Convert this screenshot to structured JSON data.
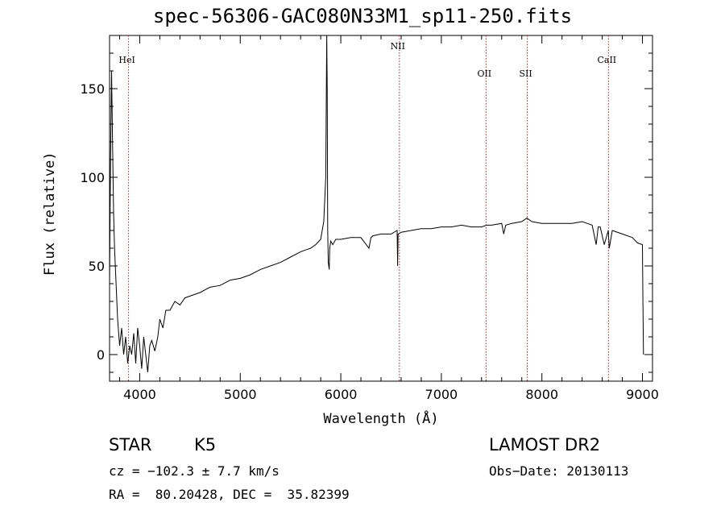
{
  "header": {
    "title": "spec-56306-GAC080N33M1_sp11-250.fits"
  },
  "info": {
    "obj_class": "STAR",
    "subclass": "K5",
    "survey": "LAMOST DR2",
    "cz": "cz = −102.3 ± 7.7 km/s",
    "obs_date": "Obs−Date: 20130113",
    "radec": "RA =  80.20428, DEC =  35.82399"
  },
  "colors": {
    "spectrum": "#000000",
    "lines": "#b22222",
    "axes": "#000000"
  },
  "chart_data": {
    "type": "line",
    "title": "spec-56306-GAC080N33M1_sp11-250.fits",
    "xlabel": "Wavelength (Å)",
    "ylabel": "Flux (relative)",
    "xlim": [
      3700,
      9100
    ],
    "ylim": [
      -15,
      180
    ],
    "xticks": [
      4000,
      5000,
      6000,
      7000,
      8000,
      9000
    ],
    "yticks": [
      0,
      50,
      100,
      150
    ],
    "grid": false,
    "series": [
      {
        "x": [
          3700,
          3710,
          3720,
          3730,
          3740,
          3750,
          3765,
          3780,
          3800,
          3820,
          3840,
          3860,
          3880,
          3900,
          3920,
          3940,
          3960,
          3980,
          4000,
          4020,
          4040,
          4060,
          4080,
          4100,
          4120,
          4150,
          4180,
          4200,
          4230,
          4260,
          4300,
          4350,
          4400,
          4450,
          4500,
          4600,
          4700,
          4800,
          4900,
          5000,
          5100,
          5200,
          5300,
          5400,
          5500,
          5600,
          5700,
          5750,
          5800,
          5830,
          5850,
          5860,
          5865,
          5870,
          5875,
          5880,
          5885,
          5890,
          5900,
          5920,
          5950,
          6000,
          6100,
          6200,
          6280,
          6300,
          6320,
          6400,
          6500,
          6560,
          6565,
          6570,
          6600,
          6700,
          6800,
          6900,
          7000,
          7100,
          7200,
          7300,
          7400,
          7450,
          7500,
          7600,
          7620,
          7640,
          7700,
          7800,
          7850,
          7900,
          8000,
          8100,
          8200,
          8300,
          8400,
          8450,
          8500,
          8540,
          8560,
          8580,
          8620,
          8660,
          8670,
          8700,
          8800,
          8900,
          8950,
          9000,
          9005,
          9010
        ],
        "y": [
          40,
          110,
          160,
          120,
          80,
          60,
          40,
          20,
          5,
          15,
          0,
          10,
          -5,
          5,
          0,
          12,
          -5,
          15,
          5,
          -8,
          10,
          0,
          -10,
          5,
          8,
          2,
          10,
          20,
          15,
          25,
          25,
          30,
          28,
          32,
          33,
          35,
          38,
          39,
          42,
          43,
          45,
          48,
          50,
          52,
          55,
          58,
          60,
          62,
          65,
          75,
          100,
          180,
          150,
          70,
          52,
          50,
          48,
          60,
          64,
          62,
          65,
          65,
          66,
          66,
          60,
          66,
          67,
          68,
          68,
          70,
          50,
          68,
          69,
          70,
          71,
          71,
          72,
          72,
          73,
          72,
          72,
          73,
          73,
          74,
          68,
          73,
          74,
          75,
          77,
          75,
          74,
          74,
          74,
          74,
          75,
          74,
          73,
          62,
          72,
          72,
          62,
          70,
          60,
          70,
          68,
          66,
          63,
          62,
          30,
          0
        ]
      }
    ],
    "annotations": [
      {
        "label": "HeI",
        "x": 3889
      },
      {
        "label": "NII",
        "x": 6583
      },
      {
        "label": "OII",
        "x": 7444
      },
      {
        "label": "SII",
        "x": 7855
      },
      {
        "label": "CaII",
        "x": 8662
      }
    ]
  }
}
